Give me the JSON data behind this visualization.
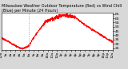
{
  "bg_color": "#d8d8d8",
  "plot_bg_color": "#ffffff",
  "line_color": "#ff0000",
  "y_ticks": [
    25,
    30,
    35,
    40,
    45,
    50,
    55,
    60,
    65
  ],
  "ylim": [
    23,
    67
  ],
  "xlim": [
    0,
    1440
  ],
  "title_text": "Milwaukee Weather Outdoor Temperature (Red) vs Wind Chill (Blue) per Minute (24 Hours)",
  "title_fontsize": 3.5,
  "tick_fontsize": 3.2,
  "vline_positions": [
    360
  ],
  "vline_color": "#999999",
  "x_tick_positions": [
    0,
    60,
    120,
    180,
    240,
    300,
    360,
    420,
    480,
    540,
    600,
    660,
    720,
    780,
    840,
    900,
    960,
    1020,
    1080,
    1140,
    1200,
    1260,
    1320,
    1380,
    1440
  ],
  "x_tick_labels": [
    "12a",
    "1a",
    "2a",
    "3a",
    "4a",
    "5a",
    "6a",
    "7a",
    "8a",
    "9a",
    "10a",
    "11a",
    "12p",
    "1p",
    "2p",
    "3p",
    "4p",
    "5p",
    "6p",
    "7p",
    "8p",
    "9p",
    "10p",
    "11p",
    "12a"
  ]
}
